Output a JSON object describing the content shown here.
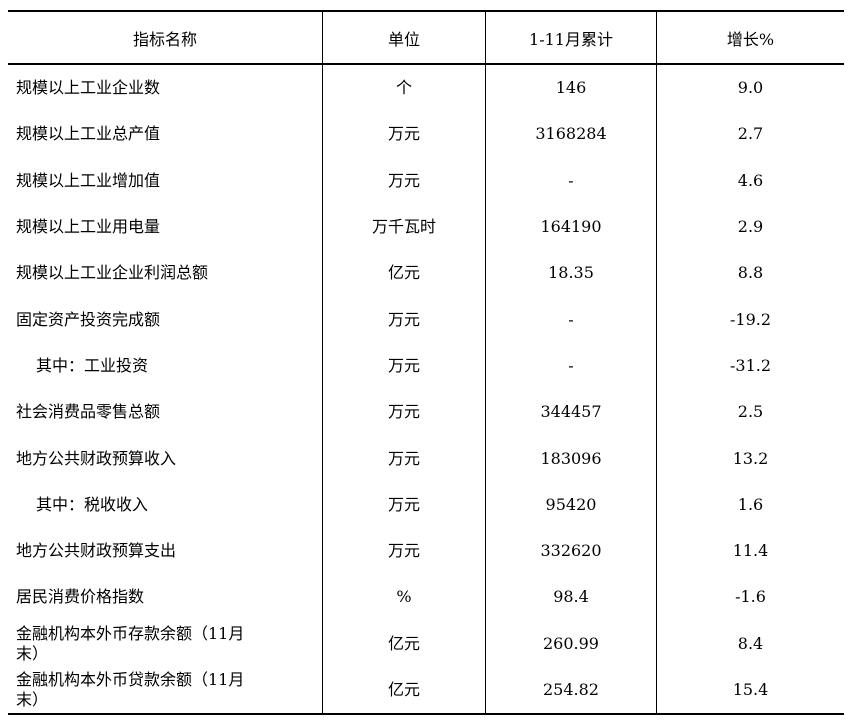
{
  "table": {
    "headers": [
      "指标名称",
      "单位",
      "1-11月累计",
      "增长%"
    ],
    "rows": [
      {
        "name": "规模以上工业企业数",
        "unit": "个",
        "value": "146",
        "growth": "9.0",
        "indent": false
      },
      {
        "name": "规模以上工业总产值",
        "unit": "万元",
        "value": "3168284",
        "growth": "2.7",
        "indent": false
      },
      {
        "name": "规模以上工业增加值",
        "unit": "万元",
        "value": "-",
        "growth": "4.6",
        "indent": false
      },
      {
        "name": "规模以上工业用电量",
        "unit": "万千瓦时",
        "value": "164190",
        "growth": "2.9",
        "indent": false
      },
      {
        "name": "规模以上工业企业利润总额",
        "unit": "亿元",
        "value": "18.35",
        "growth": "8.8",
        "indent": false
      },
      {
        "name": "固定资产投资完成额",
        "unit": "万元",
        "value": "-",
        "growth": "-19.2",
        "indent": false
      },
      {
        "name": "其中：工业投资",
        "unit": "万元",
        "value": "-",
        "growth": "-31.2",
        "indent": true
      },
      {
        "name": "社会消费品零售总额",
        "unit": "万元",
        "value": "344457",
        "growth": "2.5",
        "indent": false
      },
      {
        "name": "地方公共财政预算收入",
        "unit": "万元",
        "value": "183096",
        "growth": "13.2",
        "indent": false
      },
      {
        "name": "其中：税收收入",
        "unit": "万元",
        "value": "95420",
        "growth": "1.6",
        "indent": true
      },
      {
        "name": "地方公共财政预算支出",
        "unit": "万元",
        "value": "332620",
        "growth": "11.4",
        "indent": false
      },
      {
        "name": "居民消费价格指数",
        "unit": "%",
        "value": "98.4",
        "growth": "-1.6",
        "indent": false
      },
      {
        "name": "金融机构本外币存款余额（11月\n末）",
        "unit": "亿元",
        "value": "260.99",
        "growth": "8.4",
        "indent": false
      },
      {
        "name": "金融机构本外币贷款余额（11月\n末）",
        "unit": "亿元",
        "value": "254.82",
        "growth": "15.4",
        "indent": false
      }
    ]
  }
}
